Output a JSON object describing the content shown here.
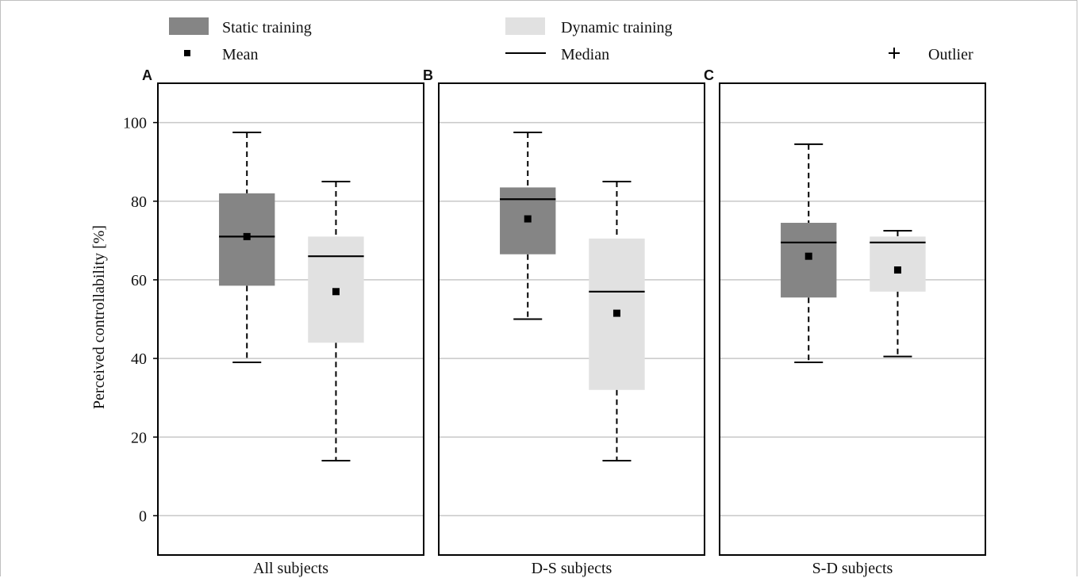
{
  "legend": {
    "static_label": "Static training",
    "dynamic_label": "Dynamic training",
    "mean_label": "Mean",
    "median_label": "Median",
    "outlier_label": "Outlier"
  },
  "colors": {
    "static": "#858585",
    "dynamic": "#e1e1e1",
    "grid": "#c8c8c8"
  },
  "chart_data": [
    {
      "type": "box",
      "panel": "A",
      "xlabel": "All subjects",
      "ylabel": "Perceived controllability [%]",
      "ylim": [
        -10,
        110
      ],
      "yticks": [
        0,
        20,
        40,
        60,
        80,
        100
      ],
      "grid": true,
      "series": [
        {
          "name": "Static training",
          "whisker_low": 39,
          "q1": 58.5,
          "median": 71,
          "q3": 82,
          "whisker_high": 97.5,
          "mean": 71
        },
        {
          "name": "Dynamic training",
          "whisker_low": 14,
          "q1": 44,
          "median": 66,
          "q3": 71,
          "whisker_high": 85,
          "mean": 57
        }
      ]
    },
    {
      "type": "box",
      "panel": "B",
      "xlabel": "D-S subjects",
      "ylim": [
        -10,
        110
      ],
      "yticks": [
        0,
        20,
        40,
        60,
        80,
        100
      ],
      "grid": true,
      "series": [
        {
          "name": "Static training",
          "whisker_low": 50,
          "q1": 66.5,
          "median": 80.5,
          "q3": 83.5,
          "whisker_high": 97.5,
          "mean": 75.5
        },
        {
          "name": "Dynamic training",
          "whisker_low": 14,
          "q1": 32,
          "median": 57,
          "q3": 70.5,
          "whisker_high": 85,
          "mean": 51.5
        }
      ]
    },
    {
      "type": "box",
      "panel": "C",
      "xlabel": "S-D subjects",
      "ylim": [
        -10,
        110
      ],
      "yticks": [
        0,
        20,
        40,
        60,
        80,
        100
      ],
      "grid": true,
      "series": [
        {
          "name": "Static training",
          "whisker_low": 39,
          "q1": 55.5,
          "median": 69.5,
          "q3": 74.5,
          "whisker_high": 94.5,
          "mean": 66
        },
        {
          "name": "Dynamic training",
          "whisker_low": 40.5,
          "q1": 57,
          "median": 69.5,
          "q3": 71,
          "whisker_high": 72.5,
          "mean": 62.5
        }
      ]
    }
  ]
}
